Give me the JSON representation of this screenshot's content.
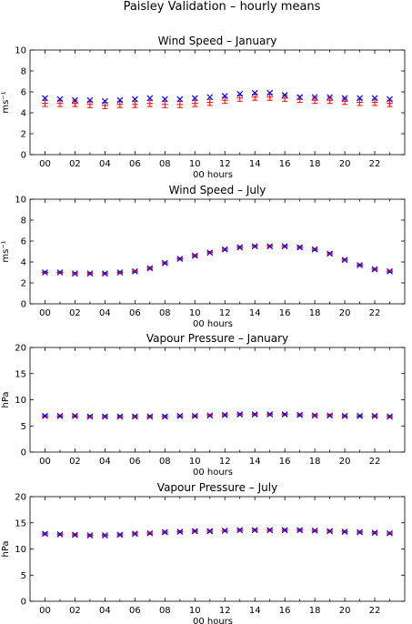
{
  "figure": {
    "title": "Paisley Validation – hourly means"
  },
  "chart_data": [
    {
      "type": "scatter",
      "title": "Wind Speed – January",
      "xlabel": "00 hours",
      "ylabel": "ms⁻¹",
      "xlim": [
        -1,
        24
      ],
      "ylim": [
        0,
        10
      ],
      "yticks": [
        0,
        2,
        4,
        6,
        8,
        10
      ],
      "xticks": [
        "00",
        "02",
        "04",
        "06",
        "08",
        "10",
        "12",
        "14",
        "16",
        "18",
        "20",
        "22"
      ],
      "x": [
        0,
        1,
        2,
        3,
        4,
        5,
        6,
        7,
        8,
        9,
        10,
        11,
        12,
        13,
        14,
        15,
        16,
        17,
        18,
        19,
        20,
        21,
        22,
        23
      ],
      "series": [
        {
          "color": "#ff0000",
          "marker": "errorbar",
          "values": [
            4.9,
            4.9,
            4.9,
            4.8,
            4.7,
            4.8,
            4.8,
            4.9,
            4.8,
            4.8,
            4.9,
            5.0,
            5.2,
            5.4,
            5.5,
            5.5,
            5.4,
            5.3,
            5.2,
            5.2,
            5.1,
            5.0,
            5.0,
            4.9
          ],
          "error": [
            0.3,
            0.3,
            0.3,
            0.3,
            0.3,
            0.3,
            0.3,
            0.3,
            0.3,
            0.3,
            0.3,
            0.3,
            0.3,
            0.3,
            0.3,
            0.3,
            0.3,
            0.3,
            0.3,
            0.3,
            0.3,
            0.3,
            0.3,
            0.3
          ]
        },
        {
          "color": "#0000ff",
          "marker": "x",
          "values": [
            5.4,
            5.3,
            5.2,
            5.2,
            5.1,
            5.2,
            5.3,
            5.4,
            5.3,
            5.3,
            5.4,
            5.5,
            5.6,
            5.8,
            5.9,
            5.9,
            5.7,
            5.5,
            5.5,
            5.5,
            5.4,
            5.4,
            5.4,
            5.3
          ]
        }
      ]
    },
    {
      "type": "scatter",
      "title": "Wind Speed – July",
      "xlabel": "00 hours",
      "ylabel": "ms⁻¹",
      "xlim": [
        -1,
        24
      ],
      "ylim": [
        0,
        10
      ],
      "yticks": [
        0,
        2,
        4,
        6,
        8,
        10
      ],
      "xticks": [
        "00",
        "02",
        "04",
        "06",
        "08",
        "10",
        "12",
        "14",
        "16",
        "18",
        "20",
        "22"
      ],
      "x": [
        0,
        1,
        2,
        3,
        4,
        5,
        6,
        7,
        8,
        9,
        10,
        11,
        12,
        13,
        14,
        15,
        16,
        17,
        18,
        19,
        20,
        21,
        22,
        23
      ],
      "series": [
        {
          "color": "#ff0000",
          "marker": "errorbar",
          "values": [
            3.0,
            3.0,
            2.9,
            2.9,
            2.9,
            3.0,
            3.1,
            3.4,
            3.9,
            4.3,
            4.6,
            4.9,
            5.2,
            5.4,
            5.5,
            5.5,
            5.5,
            5.4,
            5.2,
            4.8,
            4.2,
            3.7,
            3.3,
            3.1
          ],
          "error": [
            0.1,
            0.1,
            0.1,
            0.1,
            0.1,
            0.1,
            0.1,
            0.1,
            0.1,
            0.1,
            0.1,
            0.1,
            0.1,
            0.1,
            0.1,
            0.1,
            0.1,
            0.1,
            0.1,
            0.1,
            0.1,
            0.1,
            0.1,
            0.1
          ]
        },
        {
          "color": "#0000ff",
          "marker": "x",
          "values": [
            3.0,
            3.0,
            2.9,
            2.9,
            2.9,
            3.0,
            3.1,
            3.4,
            3.9,
            4.3,
            4.6,
            4.9,
            5.2,
            5.4,
            5.5,
            5.5,
            5.5,
            5.4,
            5.2,
            4.8,
            4.2,
            3.7,
            3.3,
            3.1
          ]
        }
      ]
    },
    {
      "type": "scatter",
      "title": "Vapour Pressure – January",
      "xlabel": "00 hours",
      "ylabel": "hPa",
      "xlim": [
        -1,
        24
      ],
      "ylim": [
        0,
        20
      ],
      "yticks": [
        0,
        5,
        10,
        15,
        20
      ],
      "xticks": [
        "00",
        "02",
        "04",
        "06",
        "08",
        "10",
        "12",
        "14",
        "16",
        "18",
        "20",
        "22"
      ],
      "x": [
        0,
        1,
        2,
        3,
        4,
        5,
        6,
        7,
        8,
        9,
        10,
        11,
        12,
        13,
        14,
        15,
        16,
        17,
        18,
        19,
        20,
        21,
        22,
        23
      ],
      "series": [
        {
          "color": "#ff0000",
          "marker": "errorbar",
          "values": [
            6.9,
            6.9,
            6.9,
            6.8,
            6.8,
            6.8,
            6.8,
            6.8,
            6.8,
            6.9,
            6.9,
            7.0,
            7.1,
            7.2,
            7.2,
            7.2,
            7.2,
            7.1,
            7.0,
            7.0,
            6.9,
            6.9,
            6.9,
            6.8
          ],
          "error": [
            0.2,
            0.2,
            0.2,
            0.2,
            0.2,
            0.2,
            0.2,
            0.2,
            0.2,
            0.2,
            0.2,
            0.2,
            0.2,
            0.2,
            0.2,
            0.2,
            0.2,
            0.2,
            0.2,
            0.2,
            0.2,
            0.2,
            0.2,
            0.2
          ]
        },
        {
          "color": "#0000ff",
          "marker": "x",
          "values": [
            6.9,
            6.9,
            6.9,
            6.8,
            6.8,
            6.8,
            6.8,
            6.8,
            6.8,
            6.9,
            6.9,
            7.0,
            7.1,
            7.2,
            7.2,
            7.2,
            7.2,
            7.1,
            7.0,
            7.0,
            6.9,
            6.9,
            6.9,
            6.8
          ]
        }
      ]
    },
    {
      "type": "scatter",
      "title": "Vapour Pressure – July",
      "xlabel": "00 hours",
      "ylabel": "hPa",
      "xlim": [
        -1,
        24
      ],
      "ylim": [
        0,
        20
      ],
      "yticks": [
        0,
        5,
        10,
        15,
        20
      ],
      "xticks": [
        "00",
        "02",
        "04",
        "06",
        "08",
        "10",
        "12",
        "14",
        "16",
        "18",
        "20",
        "22"
      ],
      "x": [
        0,
        1,
        2,
        3,
        4,
        5,
        6,
        7,
        8,
        9,
        10,
        11,
        12,
        13,
        14,
        15,
        16,
        17,
        18,
        19,
        20,
        21,
        22,
        23
      ],
      "series": [
        {
          "color": "#ff0000",
          "marker": "errorbar",
          "values": [
            12.9,
            12.8,
            12.7,
            12.6,
            12.6,
            12.7,
            12.9,
            13.0,
            13.2,
            13.3,
            13.4,
            13.4,
            13.5,
            13.6,
            13.6,
            13.6,
            13.6,
            13.6,
            13.5,
            13.4,
            13.3,
            13.2,
            13.1,
            13.0
          ],
          "error": [
            0.2,
            0.2,
            0.2,
            0.2,
            0.2,
            0.2,
            0.2,
            0.2,
            0.2,
            0.2,
            0.2,
            0.2,
            0.2,
            0.2,
            0.2,
            0.2,
            0.2,
            0.2,
            0.2,
            0.2,
            0.2,
            0.2,
            0.2,
            0.2
          ]
        },
        {
          "color": "#0000ff",
          "marker": "x",
          "values": [
            12.9,
            12.8,
            12.7,
            12.6,
            12.6,
            12.7,
            12.9,
            13.0,
            13.2,
            13.3,
            13.4,
            13.4,
            13.5,
            13.6,
            13.6,
            13.6,
            13.6,
            13.6,
            13.5,
            13.4,
            13.3,
            13.2,
            13.1,
            13.0
          ]
        }
      ]
    }
  ]
}
